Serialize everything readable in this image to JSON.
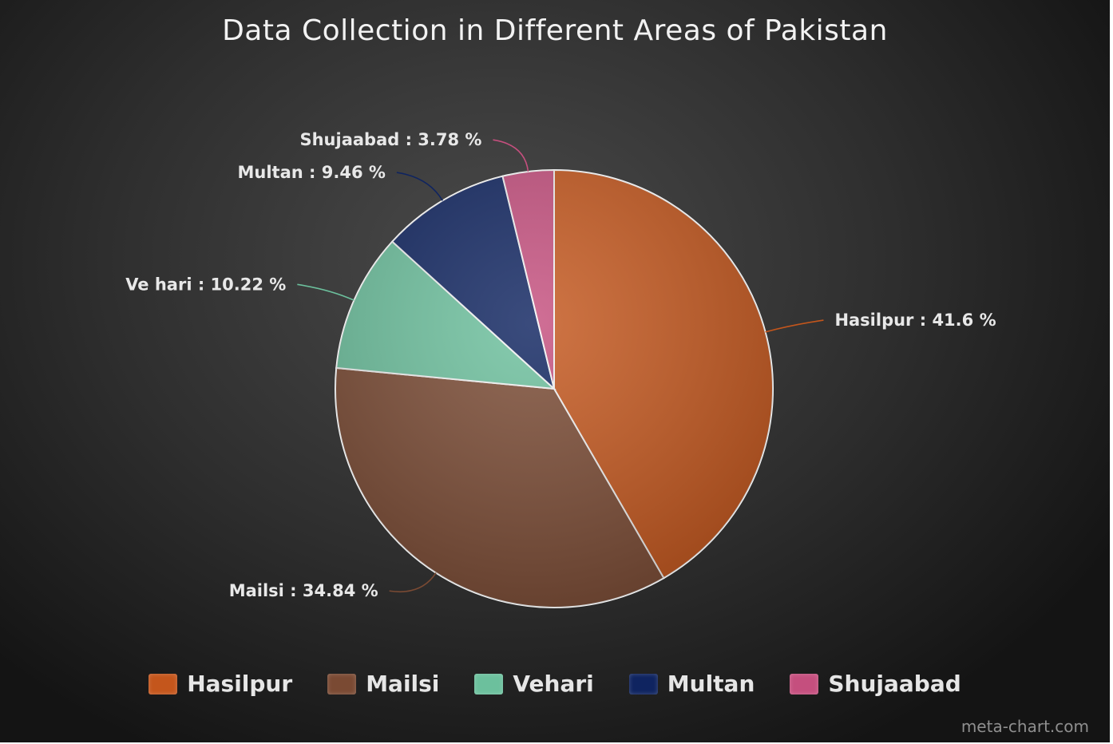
{
  "chart_data": {
    "type": "pie",
    "title": "Data Collection in Different Areas of Pakistan",
    "slices": [
      {
        "label": "Hasilpur",
        "value": 41.6,
        "display": "Hasilpur : 41.6 %",
        "color": "#c4561c"
      },
      {
        "label": "Mailsi",
        "value": 34.84,
        "display": "Mailsi : 34.84 %",
        "color": "#7a4a33"
      },
      {
        "label": "Vehari",
        "value": 10.22,
        "display": "Ve hari : 10.22 %",
        "color": "#6cc09d"
      },
      {
        "label": "Multan",
        "value": 9.46,
        "display": "Multan : 9.46 %",
        "color": "#0f2460"
      },
      {
        "label": "Shujaabad",
        "value": 3.78,
        "display": "Shujaabad : 3.78 %",
        "color": "#c54f7e"
      }
    ],
    "legend_position": "bottom"
  },
  "watermark": "meta-chart.com"
}
